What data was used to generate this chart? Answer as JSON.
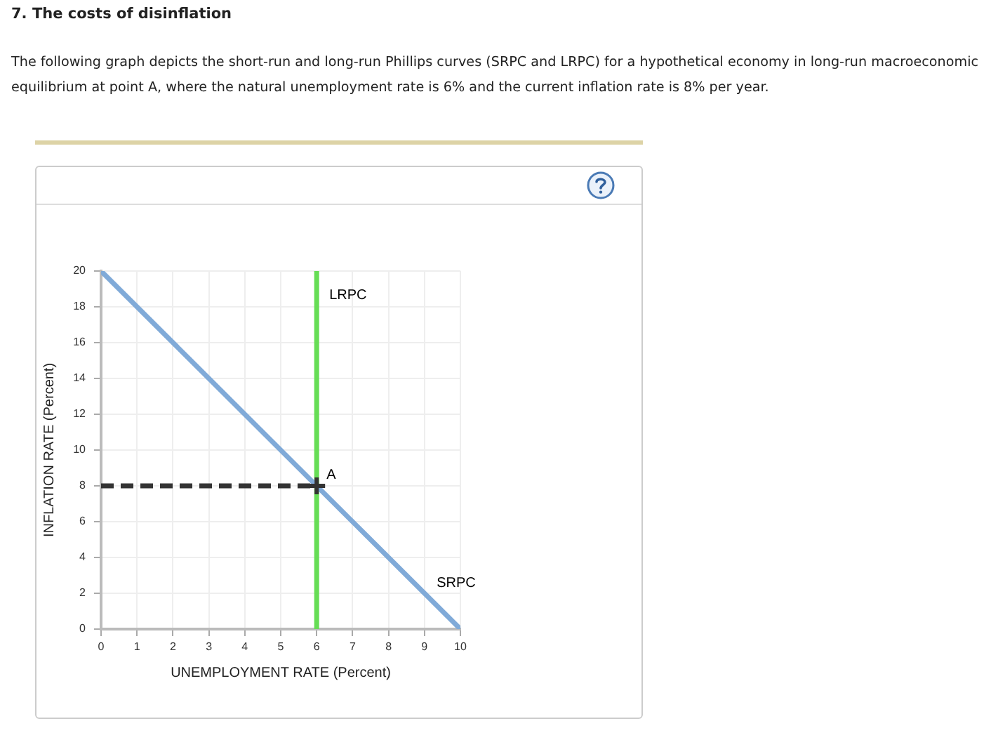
{
  "chart_data": {
    "type": "line",
    "title": "7. The costs of disinflation",
    "subtitle": "The following graph depicts the short-run and long-run Phillips curves (SRPC and LRPC) for a hypothetical economy in long-run macroeconomic equilibrium at point A, where the natural unemployment rate is 6% and the current inflation rate is 8% per year.",
    "xlabel": "UNEMPLOYMENT RATE (Percent)",
    "ylabel": "INFLATION RATE (Percent)",
    "xlim": [
      0,
      10
    ],
    "xticks": [
      0,
      1,
      2,
      3,
      4,
      5,
      6,
      7,
      8,
      9,
      10
    ],
    "ylim": [
      0,
      20
    ],
    "yticks": [
      0,
      2,
      4,
      6,
      8,
      10,
      12,
      14,
      16,
      18,
      20
    ],
    "grid": true,
    "marker": "none",
    "series": [
      {
        "name": "LRPC",
        "color": "#66dd55",
        "x": [
          6,
          6
        ],
        "values": [
          0,
          20
        ]
      },
      {
        "name": "SRPC",
        "color": "#80aad8",
        "x": [
          0,
          10
        ],
        "values": [
          20,
          0
        ]
      },
      {
        "color": "#333333",
        "line_style": "dashed",
        "x": [
          0,
          6
        ],
        "values": [
          8,
          8
        ]
      },
      {
        "type": "scatter",
        "marker": "cross",
        "color": "#333333",
        "x": [
          6
        ],
        "values": [
          8
        ]
      }
    ],
    "annotations": [
      {
        "text": "A",
        "x": 6,
        "y": 8
      }
    ]
  }
}
